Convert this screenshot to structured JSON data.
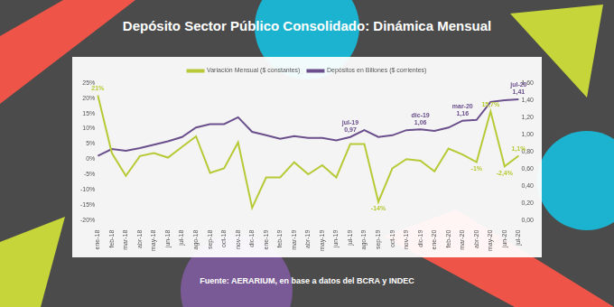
{
  "chart_data": {
    "type": "line",
    "title": "Depósito Sector Público Consolidado: Dinámica Mensual",
    "source": "Fuente: AERARIUM, en base a datos del BCRA y INDEC",
    "categories": [
      "ene-18",
      "feb-18",
      "mar-18",
      "abr-18",
      "may-18",
      "jun-18",
      "jul-18",
      "ago-18",
      "sep-18",
      "oct-18",
      "nov-18",
      "dic-18",
      "ene-19",
      "feb-19",
      "mar-19",
      "abr-19",
      "may-19",
      "jun-19",
      "jul-19",
      "ago-19",
      "sep-19",
      "oct-19",
      "nov-19",
      "dic-19",
      "ene-20",
      "feb-20",
      "mar-20",
      "abr-20",
      "may-20",
      "jun-20",
      "jul-20"
    ],
    "series": [
      {
        "name": "Variación Mensual ($ constantes)",
        "color": "#b7c934",
        "values": [
          21,
          2,
          -5.5,
          1,
          2,
          0.5,
          4,
          7.5,
          -4.5,
          -3,
          5.5,
          -16,
          -6,
          -6,
          -1,
          -5,
          -2,
          -6,
          5,
          5,
          -14,
          -3,
          0,
          -0.5,
          -4,
          3.5,
          1.5,
          -1,
          15.7,
          -2.4,
          1.1
        ],
        "value_labels": [
          "21%",
          null,
          null,
          null,
          null,
          null,
          null,
          null,
          null,
          null,
          null,
          null,
          null,
          null,
          null,
          null,
          null,
          null,
          null,
          null,
          "-14%",
          null,
          null,
          null,
          null,
          null,
          null,
          "-1%",
          "15,7%",
          "-2,4%",
          "1,1%"
        ]
      },
      {
        "name": "Depósitos en Billones ($ corrientes)",
        "color": "#6a4f8c",
        "axis": "y2",
        "values": [
          0.75,
          0.83,
          0.81,
          0.84,
          0.88,
          0.92,
          0.97,
          1.08,
          1.12,
          1.12,
          1.2,
          1.03,
          0.99,
          0.95,
          0.98,
          0.96,
          0.96,
          0.93,
          0.97,
          1.05,
          0.97,
          0.99,
          1.05,
          1.06,
          1.04,
          1.08,
          1.16,
          1.17,
          1.38,
          1.4,
          1.41
        ],
        "value_labels": [
          null,
          null,
          null,
          null,
          null,
          null,
          null,
          null,
          null,
          null,
          null,
          null,
          null,
          null,
          null,
          null,
          null,
          null,
          "jul-19\n0,97",
          null,
          null,
          null,
          null,
          "dic-19\n1,06",
          null,
          null,
          "mar-20\n1,16",
          null,
          null,
          null,
          "jul-20\n1,41"
        ]
      }
    ],
    "ylim": [
      -20,
      25
    ],
    "yticks": [
      {
        "value": -20,
        "label": "-20%"
      },
      {
        "value": -15,
        "label": "-15%"
      },
      {
        "value": -10,
        "label": "-10%"
      },
      {
        "value": -5,
        "label": "-5%"
      },
      {
        "value": 0,
        "label": "0%"
      },
      {
        "value": 5,
        "label": "5%"
      },
      {
        "value": 10,
        "label": "10%"
      },
      {
        "value": 15,
        "label": "15%"
      },
      {
        "value": 20,
        "label": "20%"
      },
      {
        "value": 25,
        "label": "25%"
      }
    ],
    "y2lim": [
      0,
      1.6
    ],
    "y2ticks": [
      {
        "value": 0,
        "label": "0,00"
      },
      {
        "value": 0.2,
        "label": "0,20"
      },
      {
        "value": 0.4,
        "label": "0,40"
      },
      {
        "value": 0.6,
        "label": "0,60"
      },
      {
        "value": 0.8,
        "label": "0,80"
      },
      {
        "value": 1,
        "label": "1,00"
      },
      {
        "value": 1.2,
        "label": "1,20"
      },
      {
        "value": 1.4,
        "label": "1,40"
      },
      {
        "value": 1.6,
        "label": "1,60"
      }
    ],
    "legend": "top",
    "grid": false
  }
}
